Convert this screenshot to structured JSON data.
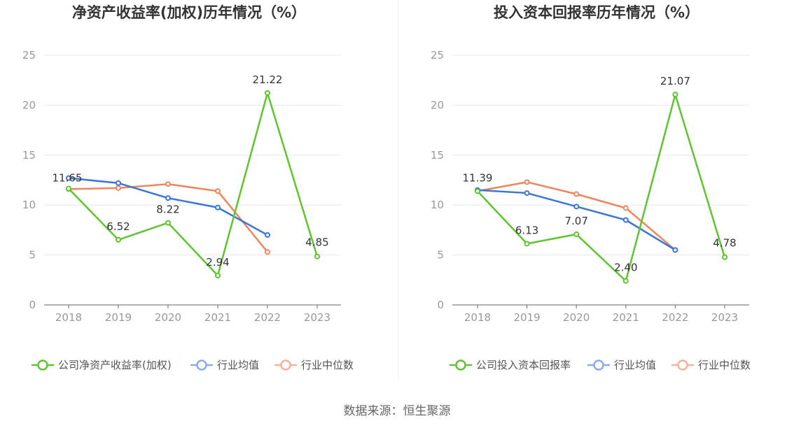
{
  "chart_data": [
    {
      "type": "line",
      "title": "净资产收益率(加权)历年情况（%）",
      "categories": [
        "2018",
        "2019",
        "2020",
        "2021",
        "2022",
        "2023"
      ],
      "ylim": [
        0,
        25
      ],
      "yticks": [
        "0",
        "5",
        "10",
        "15",
        "20",
        "25"
      ],
      "series": [
        {
          "name": "公司净资产收益率(加权)",
          "color": "#5ec42f",
          "values": [
            11.65,
            6.52,
            8.22,
            2.94,
            21.22,
            4.85
          ],
          "labels": [
            "11.65",
            "6.52",
            "8.22",
            "2.94",
            "21.22",
            "4.85"
          ]
        },
        {
          "name": "行业均值",
          "color": "#3a75d9",
          "values": [
            12.7,
            12.2,
            10.7,
            9.75,
            7.0,
            null
          ]
        },
        {
          "name": "行业中位数",
          "color": "#f0845a",
          "values": [
            11.6,
            11.7,
            12.1,
            11.4,
            5.3,
            null
          ]
        }
      ]
    },
    {
      "type": "line",
      "title": "投入资本回报率历年情况（%）",
      "categories": [
        "2018",
        "2019",
        "2020",
        "2021",
        "2022",
        "2023"
      ],
      "ylim": [
        0,
        25
      ],
      "yticks": [
        "0",
        "5",
        "10",
        "15",
        "20",
        "25"
      ],
      "series": [
        {
          "name": "公司投入资本回报率",
          "color": "#5ec42f",
          "values": [
            11.39,
            6.13,
            7.07,
            2.4,
            21.07,
            4.78
          ],
          "labels": [
            "11.39",
            "6.13",
            "7.07",
            "2.40",
            "21.07",
            "4.78"
          ]
        },
        {
          "name": "行业均值",
          "color": "#3a75d9",
          "values": [
            11.5,
            11.2,
            9.85,
            8.5,
            5.5,
            null
          ]
        },
        {
          "name": "行业中位数",
          "color": "#f0845a",
          "values": [
            11.4,
            12.3,
            11.1,
            9.7,
            5.5,
            null
          ]
        }
      ]
    }
  ],
  "legend_colors": [
    "#5ec42f",
    "#8aabf0",
    "#f7b29a"
  ],
  "source": "数据来源：恒生聚源"
}
